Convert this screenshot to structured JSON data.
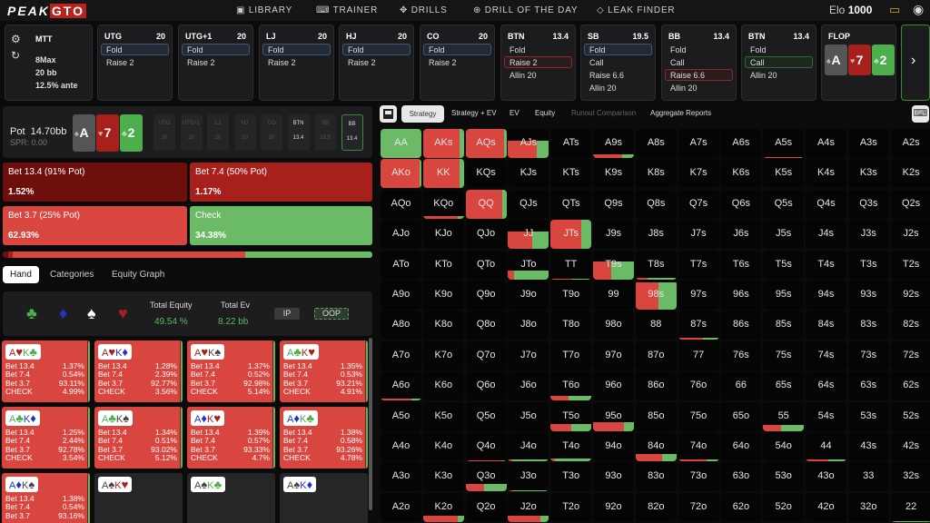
{
  "nav": {
    "logo_a": "PEAK",
    "logo_b": "GTO",
    "items": [
      "LIBRARY",
      "TRAINER",
      "DRILLS",
      "DRILL OF THE DAY",
      "LEAK FINDER"
    ],
    "elo_label": "Elo",
    "elo_value": "1000"
  },
  "settings": {
    "format": "MTT",
    "table": "8Max",
    "stack": "20 bb",
    "ante": "12.5% ante"
  },
  "actions": [
    {
      "pos": "UTG",
      "stack": "20",
      "options": [
        "Fold",
        "Raise 2"
      ],
      "selected": 0,
      "sel": "blue"
    },
    {
      "pos": "UTG+1",
      "stack": "20",
      "options": [
        "Fold",
        "Raise 2"
      ],
      "selected": 0,
      "sel": "blue"
    },
    {
      "pos": "LJ",
      "stack": "20",
      "options": [
        "Fold",
        "Raise 2"
      ],
      "selected": 0,
      "sel": "blue"
    },
    {
      "pos": "HJ",
      "stack": "20",
      "options": [
        "Fold",
        "Raise 2"
      ],
      "selected": 0,
      "sel": "blue"
    },
    {
      "pos": "CO",
      "stack": "20",
      "options": [
        "Fold",
        "Raise 2"
      ],
      "selected": 0,
      "sel": "blue"
    },
    {
      "pos": "BTN",
      "stack": "13.4",
      "options": [
        "Fold",
        "Raise 2",
        "Allin 20"
      ],
      "selected": 1,
      "sel": "red"
    },
    {
      "pos": "SB",
      "stack": "19.5",
      "options": [
        "Fold",
        "Call",
        "Raise 6.6",
        "Allin 20"
      ],
      "selected": 0,
      "sel": "blue"
    },
    {
      "pos": "BB",
      "stack": "13.4",
      "options": [
        "Fold",
        "Call",
        "Raise 6.6",
        "Allin 20"
      ],
      "selected": 2,
      "sel": "red"
    },
    {
      "pos": "BTN",
      "stack": "13.4",
      "options": [
        "Fold",
        "Call",
        "Allin 20"
      ],
      "selected": 1,
      "sel": "green"
    }
  ],
  "flop": {
    "label": "FLOP",
    "cards": [
      {
        "rank": "A",
        "suit": "♠",
        "color": "#555557"
      },
      {
        "rank": "7",
        "suit": "♥",
        "color": "#a8201c"
      },
      {
        "rank": "2",
        "suit": "♣",
        "color": "#4caf4c"
      }
    ]
  },
  "pot": {
    "label": "Pot",
    "value": "14.70bb",
    "spr": "SPR: 0.00"
  },
  "seats": [
    {
      "n": "UTG",
      "s": "20"
    },
    {
      "n": "UTG+1",
      "s": "20"
    },
    {
      "n": "LJ",
      "s": "20"
    },
    {
      "n": "HJ",
      "s": "20"
    },
    {
      "n": "CO",
      "s": "20"
    },
    {
      "n": "BTN",
      "s": "13.4"
    },
    {
      "n": "SB",
      "s": "19.5"
    },
    {
      "n": "BB",
      "s": "13.4"
    }
  ],
  "strategy": [
    {
      "label": "Bet 13.4 (91% Pot)",
      "pct": "1.52%",
      "color": "#6e0f0c",
      "freq": 1.52
    },
    {
      "label": "Bet 7.4 (50% Pot)",
      "pct": "1.17%",
      "color": "#a8201c",
      "freq": 1.17
    },
    {
      "label": "Bet 3.7 (25% Pot)",
      "pct": "62.93%",
      "color": "#d9463f",
      "freq": 62.93
    },
    {
      "label": "Check",
      "pct": "34.38%",
      "color": "#6bbb66",
      "freq": 34.38
    }
  ],
  "tabs": [
    "Hand",
    "Categories",
    "Equity Graph"
  ],
  "equity": {
    "suits": [
      "♣",
      "♦",
      "♠",
      "♥"
    ],
    "eq_label": "Total Equity",
    "eq_value": "49.54 %",
    "ev_label": "Total Ev",
    "ev_value": "8.22 bb",
    "ip": "IP",
    "oop": "OOP"
  },
  "combos": [
    {
      "c": [
        [
          "A",
          "♥"
        ],
        [
          "K",
          "♣"
        ]
      ],
      "v": [
        "1.37%",
        "0.54%",
        "93.11%",
        "4.99%"
      ]
    },
    {
      "c": [
        [
          "A",
          "♥"
        ],
        [
          "K",
          "♦"
        ]
      ],
      "v": [
        "1.28%",
        "2.39%",
        "92.77%",
        "3.56%"
      ]
    },
    {
      "c": [
        [
          "A",
          "♥"
        ],
        [
          "K",
          "♠"
        ]
      ],
      "v": [
        "1.37%",
        "0.52%",
        "92.98%",
        "5.14%"
      ]
    },
    {
      "c": [
        [
          "A",
          "♣"
        ],
        [
          "K",
          "♥"
        ]
      ],
      "v": [
        "1.35%",
        "0.53%",
        "93.21%",
        "4.91%"
      ]
    },
    {
      "c": [
        [
          "A",
          "♣"
        ],
        [
          "K",
          "♦"
        ]
      ],
      "v": [
        "1.25%",
        "2.44%",
        "92.78%",
        "3.54%"
      ]
    },
    {
      "c": [
        [
          "A",
          "♣"
        ],
        [
          "K",
          "♠"
        ]
      ],
      "v": [
        "1.34%",
        "0.51%",
        "93.02%",
        "5.12%"
      ]
    },
    {
      "c": [
        [
          "A",
          "♦"
        ],
        [
          "K",
          "♥"
        ]
      ],
      "v": [
        "1.39%",
        "0.57%",
        "93.33%",
        "4.7%"
      ]
    },
    {
      "c": [
        [
          "A",
          "♦"
        ],
        [
          "K",
          "♣"
        ]
      ],
      "v": [
        "1.38%",
        "0.58%",
        "93.26%",
        "4.78%"
      ]
    },
    {
      "c": [
        [
          "A",
          "♦"
        ],
        [
          "K",
          "♠"
        ]
      ],
      "v": [
        "1.38%",
        "0.54%",
        "93.16%"
      ]
    },
    {
      "c": [
        [
          "A",
          "♠"
        ],
        [
          "K",
          "♥"
        ]
      ],
      "v": []
    },
    {
      "c": [
        [
          "A",
          "♠"
        ],
        [
          "K",
          "♣"
        ]
      ],
      "v": []
    },
    {
      "c": [
        [
          "A",
          "♠"
        ],
        [
          "K",
          "♦"
        ]
      ],
      "v": []
    }
  ],
  "combo_row_labels": [
    "Bet 13.4",
    "Bet 7.4",
    "Bet 3.7",
    "CHECK"
  ],
  "matrix_tabs": [
    "Strategy",
    "Strategy + EV",
    "EV",
    "Equity",
    "Runout Comparison",
    "Aggregate Reports"
  ],
  "matrix": {
    "rows": [
      [
        "AA",
        "AKs",
        "AQs",
        "AJs",
        "ATs",
        "A9s",
        "A8s",
        "A7s",
        "A6s",
        "A5s",
        "A4s",
        "A3s",
        "A2s"
      ],
      [
        "AKo",
        "KK",
        "KQs",
        "KJs",
        "KTs",
        "K9s",
        "K8s",
        "K7s",
        "K6s",
        "K5s",
        "K4s",
        "K3s",
        "K2s"
      ],
      [
        "AQo",
        "KQo",
        "QQ",
        "QJs",
        "QTs",
        "Q9s",
        "Q8s",
        "Q7s",
        "Q6s",
        "Q5s",
        "Q4s",
        "Q3s",
        "Q2s"
      ],
      [
        "AJo",
        "KJo",
        "QJo",
        "JJ",
        "JTs",
        "J9s",
        "J8s",
        "J7s",
        "J6s",
        "J5s",
        "J4s",
        "J3s",
        "J2s"
      ],
      [
        "ATo",
        "KTo",
        "QTo",
        "JTo",
        "TT",
        "T9s",
        "T8s",
        "T7s",
        "T6s",
        "T5s",
        "T4s",
        "T3s",
        "T2s"
      ],
      [
        "A9o",
        "K9o",
        "Q9o",
        "J9o",
        "T9o",
        "99",
        "98s",
        "97s",
        "96s",
        "95s",
        "94s",
        "93s",
        "92s"
      ],
      [
        "A8o",
        "K8o",
        "Q8o",
        "J8o",
        "T8o",
        "98o",
        "88",
        "87s",
        "86s",
        "85s",
        "84s",
        "83s",
        "82s"
      ],
      [
        "A7o",
        "K7o",
        "Q7o",
        "J7o",
        "T7o",
        "97o",
        "87o",
        "77",
        "76s",
        "75s",
        "74s",
        "73s",
        "72s"
      ],
      [
        "A6o",
        "K6o",
        "Q6o",
        "J6o",
        "T6o",
        "96o",
        "86o",
        "76o",
        "66",
        "65s",
        "64s",
        "63s",
        "62s"
      ],
      [
        "A5o",
        "K5o",
        "Q5o",
        "J5o",
        "T5o",
        "95o",
        "85o",
        "75o",
        "65o",
        "55",
        "54s",
        "53s",
        "52s"
      ],
      [
        "A4o",
        "K4o",
        "Q4o",
        "J4o",
        "T4o",
        "94o",
        "84o",
        "74o",
        "64o",
        "54o",
        "44",
        "43s",
        "42s"
      ],
      [
        "A3o",
        "K3o",
        "Q3o",
        "J3o",
        "T3o",
        "93o",
        "83o",
        "73o",
        "63o",
        "53o",
        "43o",
        "33",
        "32s"
      ],
      [
        "A2o",
        "K2o",
        "Q2o",
        "J2o",
        "T2o",
        "92o",
        "82o",
        "72o",
        "62o",
        "52o",
        "42o",
        "32o",
        "22"
      ]
    ],
    "freq": {
      "AA": [
        1,
        0
      ],
      "AKs": [
        1,
        0.9
      ],
      "AQs": [
        1,
        0.95
      ],
      "AJs": [
        0.6,
        0.7
      ],
      "A9s": [
        0.12,
        0.7
      ],
      "A5s": [
        0.03,
        0.9
      ],
      "AKo": [
        1,
        0.95
      ],
      "KK": [
        1,
        0.9
      ],
      "KQo": [
        0.1,
        0.85
      ],
      "QQ": [
        1,
        0.9
      ],
      "JJ": [
        0.6,
        0.6
      ],
      "JTs": [
        1,
        0.75
      ],
      "JTo": [
        0.3,
        0.15
      ],
      "TT": [
        0.03,
        0.5
      ],
      "T9s": [
        0.6,
        0.45
      ],
      "T8s": [
        0.05,
        0.3
      ],
      "98s": [
        0.95,
        0.55
      ],
      "87s": [
        0.08,
        0.6
      ],
      "A6o": [
        0.08,
        0.75
      ],
      "T6o": [
        0.15,
        0.45
      ],
      "T5o": [
        0.25,
        0.5
      ],
      "95o": [
        0.3,
        0.75
      ],
      "55": [
        0.2,
        0.45
      ],
      "Q4o": [
        0.03,
        0.9
      ],
      "J4o": [
        0.05,
        0.1
      ],
      "T4o": [
        0.08,
        0.1
      ],
      "84o": [
        0.25,
        0.65
      ],
      "74o": [
        0.05,
        0.7
      ],
      "44": [
        0.05,
        0.55
      ],
      "Q3o": [
        0.25,
        0.45
      ],
      "J3o": [
        0.03,
        0.1
      ],
      "K2o": [
        0.2,
        0.85
      ],
      "J2o": [
        0.2,
        0.8
      ],
      "22": [
        0.02,
        0.1
      ]
    }
  },
  "colors": {
    "red": "#d9463f",
    "green": "#6bbb66",
    "brand": "#b8221f"
  }
}
